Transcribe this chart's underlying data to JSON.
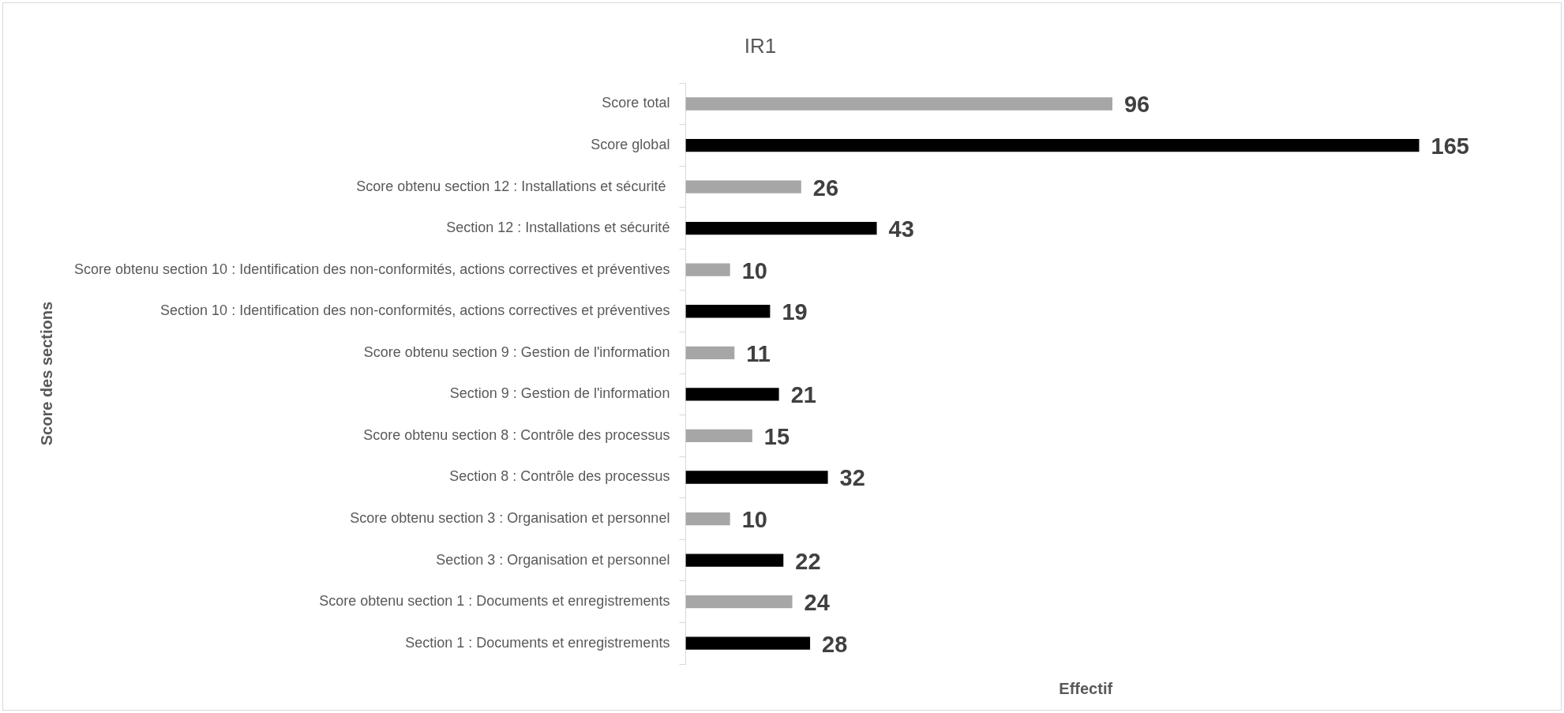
{
  "chart_data": {
    "type": "bar",
    "orientation": "horizontal",
    "title": "IR1",
    "xlabel": "Effectif",
    "ylabel": "Score des sections",
    "categories": [
      "Score total",
      "Score global",
      "Score obtenu section 12 : Installations et sécurité ",
      "Section 12 : Installations et sécurité",
      "Score obtenu section 10 : Identification des non-conformités, actions correctives et préventives",
      "Section 10 : Identification des non-conformités, actions correctives et préventives",
      "Score obtenu section 9 : Gestion de l'information",
      "Section 9 : Gestion de l'information",
      "Score obtenu section 8 : Contrôle des processus",
      "Section 8 : Contrôle des processus",
      "Score obtenu section 3 : Organisation et personnel",
      "Section 3 : Organisation et personnel",
      "Score obtenu section 1 : Documents et enregistrements",
      "Section 1 : Documents et enregistrements"
    ],
    "values": [
      96,
      165,
      26,
      43,
      10,
      19,
      11,
      21,
      15,
      32,
      10,
      22,
      24,
      28
    ],
    "colors": [
      "#a6a6a6",
      "#000000",
      "#a6a6a6",
      "#000000",
      "#a6a6a6",
      "#000000",
      "#a6a6a6",
      "#000000",
      "#a6a6a6",
      "#000000",
      "#a6a6a6",
      "#000000",
      "#a6a6a6",
      "#000000"
    ],
    "data_labels": true,
    "grid": false,
    "legend": false
  }
}
